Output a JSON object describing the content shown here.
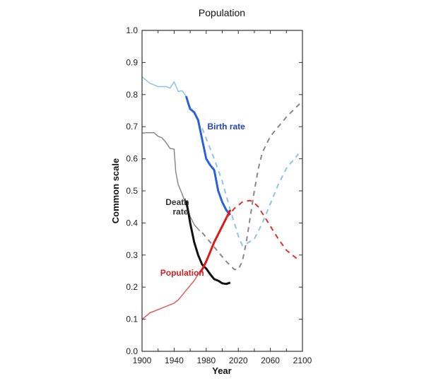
{
  "chart_data": {
    "type": "line",
    "title": "Population",
    "xlabel": "Year",
    "ylabel": "Common scale",
    "xlim": [
      1900,
      2100
    ],
    "ylim": [
      0.0,
      1.0
    ],
    "xticks": [
      1900,
      1940,
      1980,
      2020,
      2060,
      2100
    ],
    "xtick_labels": [
      "1900",
      "1940",
      "1980",
      "2020",
      "2060",
      "2100"
    ],
    "yticks": [
      0.0,
      0.1,
      0.2,
      0.3,
      0.4,
      0.5,
      0.6,
      0.7,
      0.8,
      0.9,
      1.0
    ],
    "ytick_labels": [
      "0.0",
      "0.1",
      "0.2",
      "0.3",
      "0.4",
      "0.5",
      "0.6",
      "0.7",
      "0.8",
      "0.9",
      "1.0"
    ],
    "grid": false,
    "annotations": [
      {
        "text": "Birth rate",
        "x": 2005,
        "y": 0.7,
        "color": "#2244cc"
      },
      {
        "text": "Death",
        "x": 1944,
        "y": 0.465,
        "color": "#333333"
      },
      {
        "text": "rate",
        "x": 1948,
        "y": 0.435,
        "color": "#333333"
      },
      {
        "text": "Population",
        "x": 1950,
        "y": 0.245,
        "color": "#d42020"
      }
    ],
    "series": [
      {
        "name": "Birth rate (early)",
        "color": "#8ec3ea",
        "style": "solid",
        "width": 1.5,
        "x": [
          1900,
          1905,
          1910,
          1915,
          1920,
          1925,
          1930,
          1935,
          1940,
          1945,
          1950,
          1955
        ],
        "y": [
          0.855,
          0.845,
          0.835,
          0.83,
          0.825,
          0.825,
          0.825,
          0.82,
          0.84,
          0.81,
          0.812,
          0.795
        ]
      },
      {
        "name": "Birth rate",
        "color": "#2a5fe0",
        "style": "solid",
        "width": 3,
        "x": [
          1955,
          1958,
          1960,
          1965,
          1970,
          1975,
          1980,
          1985,
          1990,
          1995,
          2000,
          2005,
          2010
        ],
        "y": [
          0.795,
          0.77,
          0.755,
          0.745,
          0.72,
          0.66,
          0.6,
          0.58,
          0.565,
          0.5,
          0.465,
          0.44,
          0.425
        ]
      },
      {
        "name": "Birth rate projection",
        "color": "#8ec3ea",
        "style": "dashed",
        "width": 2,
        "x": [
          1975,
          1990,
          2000,
          2010,
          2020,
          2025,
          2030,
          2040,
          2050,
          2060,
          2070,
          2080,
          2090,
          2095
        ],
        "y": [
          0.695,
          0.6,
          0.53,
          0.44,
          0.36,
          0.33,
          0.335,
          0.35,
          0.4,
          0.46,
          0.52,
          0.57,
          0.6,
          0.615
        ]
      },
      {
        "name": "Death rate (early)",
        "color": "#8a8a8a",
        "style": "solid",
        "width": 1.5,
        "x": [
          1900,
          1905,
          1915,
          1920,
          1925,
          1930,
          1935,
          1940,
          1942,
          1945,
          1950,
          1955,
          1960,
          1965,
          1972
        ],
        "y": [
          0.68,
          0.681,
          0.681,
          0.67,
          0.665,
          0.65,
          0.632,
          0.63,
          0.56,
          0.52,
          0.49,
          0.455,
          0.42,
          0.395,
          0.375
        ]
      },
      {
        "name": "Death rate",
        "color": "#111111",
        "style": "solid",
        "width": 3,
        "x": [
          1955,
          1958,
          1960,
          1965,
          1970,
          1975,
          1980,
          1985,
          1990,
          1995,
          2000,
          2005,
          2010
        ],
        "y": [
          0.47,
          0.43,
          0.4,
          0.34,
          0.3,
          0.27,
          0.258,
          0.24,
          0.225,
          0.22,
          0.212,
          0.21,
          0.214
        ]
      },
      {
        "name": "Death rate projection",
        "color": "#888888",
        "style": "dashed",
        "width": 2,
        "x": [
          1975,
          1985,
          1995,
          2005,
          2015,
          2020,
          2025,
          2030,
          2035,
          2040,
          2045,
          2050,
          2060,
          2070,
          2080,
          2090,
          2100
        ],
        "y": [
          0.37,
          0.34,
          0.31,
          0.28,
          0.255,
          0.255,
          0.28,
          0.34,
          0.42,
          0.5,
          0.57,
          0.62,
          0.67,
          0.7,
          0.73,
          0.755,
          0.78
        ]
      },
      {
        "name": "Population (early)",
        "color": "#e06060",
        "style": "solid",
        "width": 1.5,
        "x": [
          1900,
          1905,
          1910,
          1920,
          1930,
          1940,
          1945,
          1950,
          1955,
          1960,
          1965,
          1970,
          1975
        ],
        "y": [
          0.1,
          0.11,
          0.12,
          0.13,
          0.14,
          0.15,
          0.16,
          0.175,
          0.19,
          0.205,
          0.22,
          0.24,
          0.255
        ]
      },
      {
        "name": "Population",
        "color": "#e01818",
        "style": "solid",
        "width": 3,
        "x": [
          1972,
          1975,
          1980,
          1985,
          1990,
          1995,
          2000,
          2005,
          2010
        ],
        "y": [
          0.245,
          0.255,
          0.28,
          0.31,
          0.34,
          0.365,
          0.39,
          0.415,
          0.44
        ]
      },
      {
        "name": "Population projection",
        "color": "#e03030",
        "style": "dashed",
        "width": 2,
        "x": [
          2005,
          2010,
          2015,
          2020,
          2025,
          2030,
          2035,
          2040,
          2045,
          2050,
          2060,
          2070,
          2080,
          2090,
          2095
        ],
        "y": [
          0.415,
          0.43,
          0.445,
          0.455,
          0.465,
          0.468,
          0.47,
          0.462,
          0.45,
          0.43,
          0.39,
          0.35,
          0.315,
          0.295,
          0.285
        ]
      }
    ]
  }
}
